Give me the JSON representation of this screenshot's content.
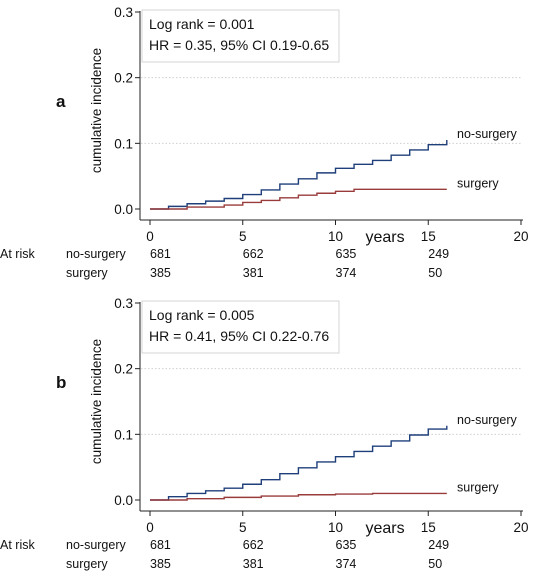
{
  "chart_data": [
    {
      "type": "line",
      "panel": "a",
      "ylabel": "cumulative incidence",
      "xlabel": "years",
      "xlim": [
        0,
        20
      ],
      "ylim": [
        0,
        0.3
      ],
      "xticks": [
        "0",
        "5",
        "10",
        "15",
        "20"
      ],
      "yticks": [
        "0.0",
        "0.1",
        "0.2",
        "0.3"
      ],
      "grid": "horizontal dotted",
      "annotations": [
        "Log rank = 0.001",
        "HR = 0.35, 95% CI 0.19-0.65"
      ],
      "series": [
        {
          "name": "no-surgery",
          "color": "#1f3f7a",
          "x": [
            0,
            1,
            2,
            3,
            4,
            5,
            6,
            7,
            8,
            9,
            10,
            11,
            12,
            13,
            14,
            15,
            16
          ],
          "y": [
            0,
            0.004,
            0.008,
            0.012,
            0.016,
            0.022,
            0.029,
            0.038,
            0.046,
            0.055,
            0.062,
            0.068,
            0.074,
            0.082,
            0.09,
            0.098,
            0.105
          ]
        },
        {
          "name": "surgery",
          "color": "#9a3b3b",
          "x": [
            0,
            2,
            4,
            5,
            6,
            7,
            8,
            9,
            10,
            11,
            12,
            16
          ],
          "y": [
            0,
            0.003,
            0.006,
            0.01,
            0.013,
            0.017,
            0.021,
            0.024,
            0.027,
            0.03,
            0.03,
            0.03
          ]
        }
      ],
      "at_risk": {
        "title": "At risk",
        "times": [
          0,
          5,
          10,
          15
        ],
        "rows": [
          {
            "label": "no-surgery",
            "counts": [
              "681",
              "662",
              "635",
              "249"
            ]
          },
          {
            "label": "surgery",
            "counts": [
              "385",
              "381",
              "374",
              "50"
            ]
          }
        ]
      }
    },
    {
      "type": "line",
      "panel": "b",
      "ylabel": "cumulative incidence",
      "xlabel": "years",
      "xlim": [
        0,
        20
      ],
      "ylim": [
        0,
        0.3
      ],
      "xticks": [
        "0",
        "5",
        "10",
        "15",
        "20"
      ],
      "yticks": [
        "0.0",
        "0.1",
        "0.2",
        "0.3"
      ],
      "grid": "horizontal dotted",
      "annotations": [
        "Log rank = 0.005",
        "HR = 0.41, 95% CI 0.22-0.76"
      ],
      "series": [
        {
          "name": "no-surgery",
          "color": "#1f3f7a",
          "x": [
            0,
            1,
            2,
            3,
            4,
            5,
            6,
            7,
            8,
            9,
            10,
            11,
            12,
            13,
            14,
            15,
            16
          ],
          "y": [
            0,
            0.005,
            0.01,
            0.014,
            0.018,
            0.024,
            0.031,
            0.04,
            0.049,
            0.058,
            0.066,
            0.074,
            0.082,
            0.09,
            0.099,
            0.108,
            0.113
          ]
        },
        {
          "name": "surgery",
          "color": "#9a3b3b",
          "x": [
            0,
            2,
            4,
            6,
            8,
            10,
            12,
            16
          ],
          "y": [
            0,
            0.002,
            0.004,
            0.006,
            0.008,
            0.009,
            0.01,
            0.01
          ]
        }
      ],
      "at_risk": {
        "title": "At risk",
        "times": [
          0,
          5,
          10,
          15
        ],
        "rows": [
          {
            "label": "no-surgery",
            "counts": [
              "681",
              "662",
              "635",
              "249"
            ]
          },
          {
            "label": "surgery",
            "counts": [
              "385",
              "381",
              "374",
              "50"
            ]
          }
        ]
      }
    }
  ]
}
